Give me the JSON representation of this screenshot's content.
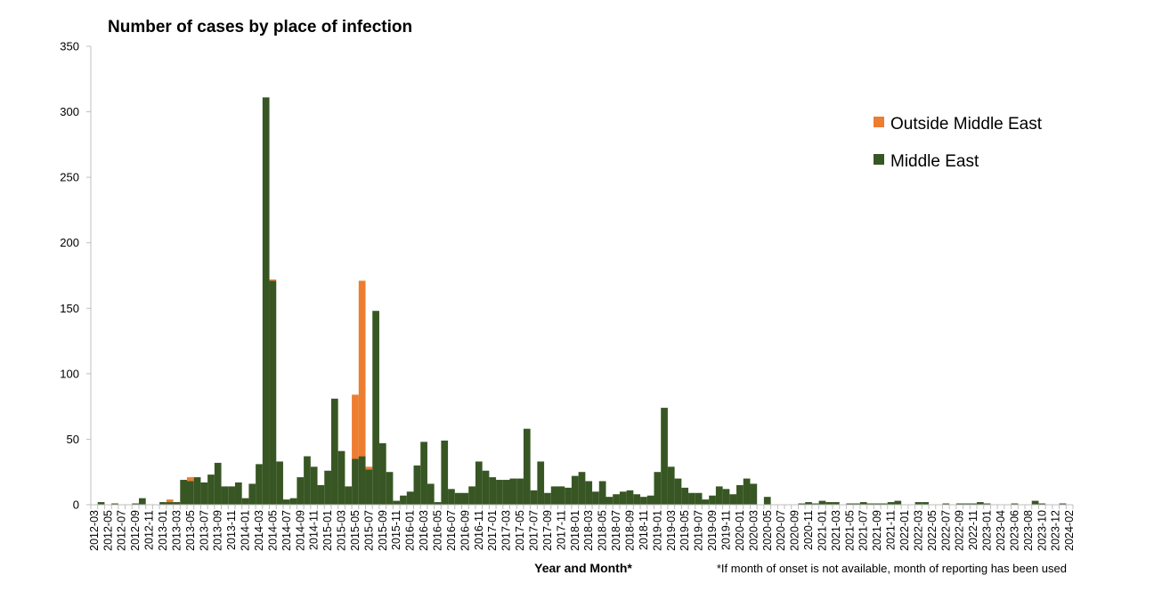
{
  "chart_data": {
    "type": "bar",
    "stacked": true,
    "title": "Number of cases by place of infection",
    "xlabel": "Year and Month*",
    "ylabel": "",
    "footnote": "*If month of onset is not available, month of reporting has been used",
    "ylim": [
      0,
      350
    ],
    "yticks": [
      0,
      50,
      100,
      150,
      200,
      250,
      300,
      350
    ],
    "grid": false,
    "legend_position": "right",
    "categories": [
      "2012-03",
      "2012-04",
      "2012-05",
      "2012-06",
      "2012-07",
      "2012-08",
      "2012-09",
      "2012-10",
      "2012-11",
      "2012-12",
      "2013-01",
      "2013-02",
      "2013-03",
      "2013-04",
      "2013-05",
      "2013-06",
      "2013-07",
      "2013-08",
      "2013-09",
      "2013-10",
      "2013-11",
      "2013-12",
      "2014-01",
      "2014-02",
      "2014-03",
      "2014-04",
      "2014-05",
      "2014-06",
      "2014-07",
      "2014-08",
      "2014-09",
      "2014-10",
      "2014-11",
      "2014-12",
      "2015-01",
      "2015-02",
      "2015-03",
      "2015-04",
      "2015-05",
      "2015-06",
      "2015-07",
      "2015-08",
      "2015-09",
      "2015-10",
      "2015-11",
      "2015-12",
      "2016-01",
      "2016-02",
      "2016-03",
      "2016-04",
      "2016-05",
      "2016-06",
      "2016-07",
      "2016-08",
      "2016-09",
      "2016-10",
      "2016-11",
      "2016-12",
      "2017-01",
      "2017-02",
      "2017-03",
      "2017-04",
      "2017-05",
      "2017-06",
      "2017-07",
      "2017-08",
      "2017-09",
      "2017-10",
      "2017-11",
      "2017-12",
      "2018-01",
      "2018-02",
      "2018-03",
      "2018-04",
      "2018-05",
      "2018-06",
      "2018-07",
      "2018-08",
      "2018-09",
      "2018-10",
      "2018-11",
      "2018-12",
      "2019-01",
      "2019-02",
      "2019-03",
      "2019-04",
      "2019-05",
      "2019-06",
      "2019-07",
      "2019-08",
      "2019-09",
      "2019-10",
      "2019-11",
      "2019-12",
      "2020-01",
      "2020-02",
      "2020-03",
      "2020-04",
      "2020-05",
      "2020-06",
      "2020-07",
      "2020-08",
      "2020-09",
      "2020-10",
      "2020-11",
      "2020-12",
      "2021-01",
      "2021-02",
      "2021-03",
      "2021-04",
      "2021-05",
      "2021-06",
      "2021-07",
      "2021-08",
      "2021-09",
      "2021-10",
      "2021-11",
      "2021-12",
      "2022-01",
      "2022-02",
      "2022-03",
      "2022-04",
      "2022-05",
      "2022-06",
      "2022-07",
      "2022-08",
      "2022-09",
      "2022-10",
      "2022-11",
      "2022-12",
      "2023-01",
      "2023-03",
      "2023-04",
      "2023-05",
      "2023-06",
      "2023-07",
      "2023-08",
      "2023-09",
      "2023-10",
      "2023-11",
      "2023-12",
      "2024-01",
      "2024-02"
    ],
    "series": [
      {
        "name": "Middle East",
        "color": "#375623",
        "values": [
          0,
          2,
          0,
          1,
          0,
          0,
          1,
          5,
          0,
          0,
          2,
          2,
          2,
          19,
          18,
          21,
          17,
          23,
          32,
          14,
          14,
          17,
          5,
          16,
          31,
          311,
          171,
          33,
          4,
          5,
          21,
          37,
          29,
          15,
          26,
          81,
          41,
          14,
          35,
          37,
          27,
          148,
          47,
          25,
          3,
          7,
          10,
          30,
          48,
          16,
          2,
          49,
          12,
          9,
          9,
          14,
          33,
          26,
          21,
          19,
          19,
          20,
          20,
          58,
          11,
          33,
          9,
          14,
          14,
          13,
          22,
          25,
          18,
          10,
          18,
          6,
          8,
          10,
          11,
          8,
          6,
          7,
          25,
          74,
          29,
          20,
          13,
          9,
          9,
          4,
          7,
          14,
          12,
          8,
          15,
          20,
          16,
          0,
          6,
          0,
          0,
          0,
          0,
          1,
          2,
          1,
          3,
          2,
          2,
          0,
          1,
          1,
          2,
          1,
          1,
          1,
          2,
          3,
          0,
          0,
          2,
          2,
          0,
          0,
          1,
          0,
          1,
          1,
          1,
          2,
          1,
          0,
          0,
          0,
          1,
          0,
          0,
          3,
          1,
          0,
          0,
          1,
          0
        ]
      },
      {
        "name": "Outside Middle East",
        "color": "#ED7D31",
        "values": [
          0,
          0,
          0,
          0,
          0,
          0,
          0,
          0,
          0,
          0,
          0,
          2,
          0,
          0,
          3,
          0,
          0,
          0,
          0,
          0,
          0,
          0,
          0,
          0,
          0,
          0,
          1,
          0,
          0,
          0,
          0,
          0,
          0,
          0,
          0,
          0,
          0,
          0,
          49,
          134,
          2,
          0,
          0,
          0,
          0,
          0,
          0,
          0,
          0,
          0,
          0,
          0,
          0,
          0,
          0,
          0,
          0,
          0,
          0,
          0,
          0,
          0,
          0,
          0,
          0,
          0,
          0,
          0,
          0,
          0,
          0,
          0,
          0,
          0,
          0,
          0,
          0,
          0,
          0,
          0,
          0,
          0,
          0,
          0,
          0,
          0,
          0,
          0,
          0,
          0,
          0,
          0,
          0,
          0,
          0,
          0,
          0,
          0,
          0,
          0,
          0,
          0,
          0,
          0,
          0,
          0,
          0,
          0,
          0,
          0,
          0,
          0,
          0,
          0,
          0,
          0,
          0,
          0,
          0,
          0,
          0,
          0,
          0,
          0,
          0,
          0,
          0,
          0,
          0,
          0,
          0,
          0,
          0,
          0,
          0,
          0,
          0,
          0,
          0,
          0,
          0,
          0,
          0
        ]
      }
    ],
    "legend": [
      "Outside Middle East",
      "Middle East"
    ]
  }
}
